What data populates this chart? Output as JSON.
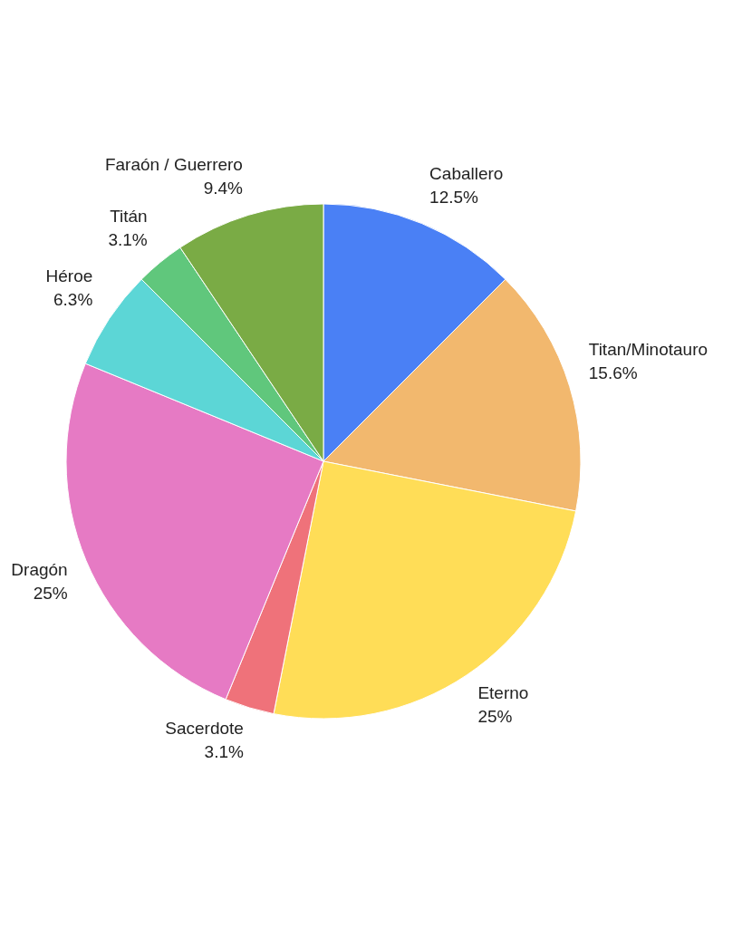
{
  "chart_data": {
    "type": "pie",
    "categories": [
      "Caballero",
      "Titan/Minotauro",
      "Eterno",
      "Sacerdote",
      "Dragón",
      "Héroe",
      "Titán",
      "Faraón / Guerrero"
    ],
    "values": [
      12.5,
      15.6,
      25,
      3.1,
      25,
      6.3,
      3.1,
      9.4
    ],
    "colors": [
      "#4a80f5",
      "#f2b86e",
      "#ffdd57",
      "#ef727a",
      "#e67ac4",
      "#5cd6d6",
      "#60c77c",
      "#7aab45"
    ],
    "value_labels": [
      "12.5%",
      "15.6%",
      "25%",
      "3.1%",
      "25%",
      "6.3%",
      "3.1%",
      "9.4%"
    ]
  }
}
